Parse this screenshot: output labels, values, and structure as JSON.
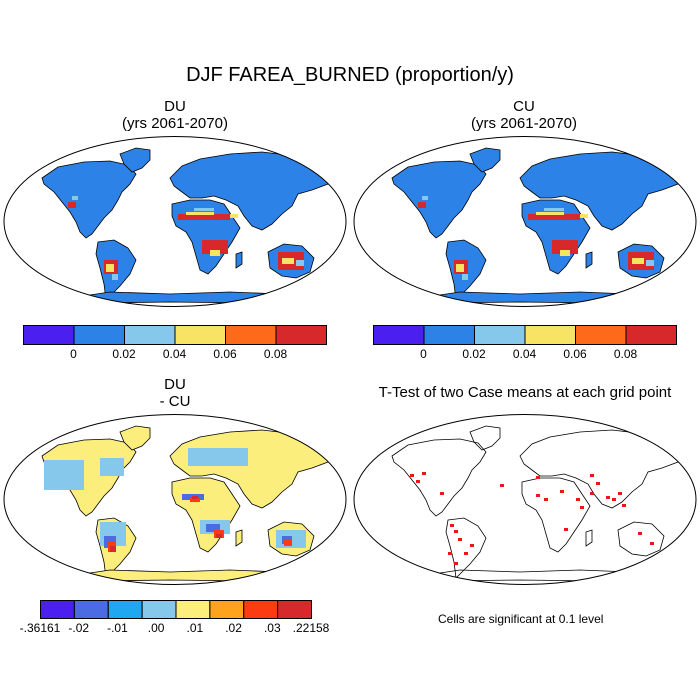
{
  "main_title": "DJF FAREA_BURNED (proportion/y)",
  "panels": {
    "du": {
      "line1": "DU",
      "line2": "(yrs 2061-2070)"
    },
    "cu": {
      "line1": "CU",
      "line2": "(yrs 2061-2070)"
    },
    "diff": {
      "line1": "DU",
      "line2": "- CU"
    },
    "ttest": {
      "title": "T-Test of two Case means at each grid point",
      "note": "Cells are significant at 0.1 level"
    }
  },
  "colorbars": {
    "abs": {
      "colors": [
        "#4a1ff0",
        "#2d82e8",
        "#86c8ec",
        "#f8e464",
        "#fd6a1a",
        "#d7282c"
      ],
      "labels": [
        "0",
        "0.02",
        "0.04",
        "0.06",
        "0.08"
      ]
    },
    "diff": {
      "colors": [
        "#4a1ff0",
        "#4a6be2",
        "#1fa7f0",
        "#86c8ec",
        "#fbee7d",
        "#ffa21c",
        "#fc3b12",
        "#d7282c"
      ],
      "labels": [
        "-.36161",
        "-.02",
        "-.01",
        ".00",
        ".01",
        ".02",
        ".03",
        ".22158"
      ]
    }
  },
  "map_colors": {
    "ocean": "#ffffff",
    "outline": "#000000",
    "abs_base": "#2d82e8",
    "diff_base": "#fbee7d",
    "sig": "#e81818"
  }
}
